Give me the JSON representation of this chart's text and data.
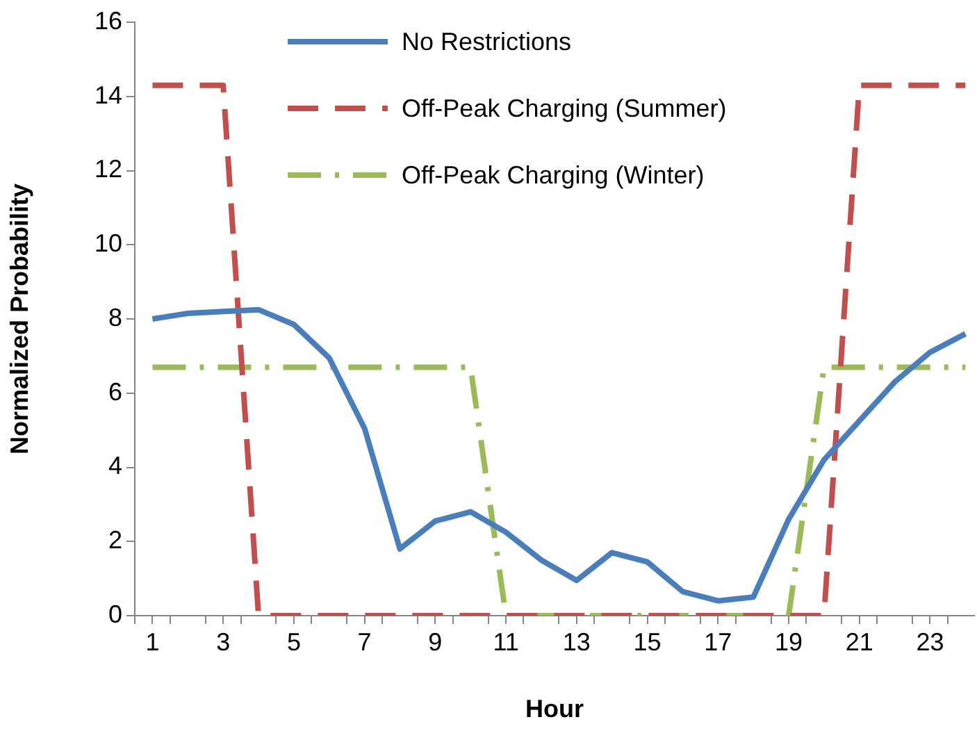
{
  "chart_data": {
    "type": "line",
    "xlabel": "Hour",
    "ylabel": "Normalized Probability",
    "x": [
      1,
      2,
      3,
      4,
      5,
      6,
      7,
      8,
      9,
      10,
      11,
      12,
      13,
      14,
      15,
      16,
      17,
      18,
      19,
      20,
      21,
      22,
      23,
      24
    ],
    "xlim": [
      0.5,
      24.25
    ],
    "xticks": [
      {
        "value": 0.5,
        "label": null
      },
      1,
      {
        "value": 1.5,
        "label": null
      },
      {
        "value": 2.5,
        "label": null
      },
      3,
      {
        "value": 3.5,
        "label": null
      },
      {
        "value": 4.5,
        "label": null
      },
      5,
      {
        "value": 5.5,
        "label": null
      },
      {
        "value": 6.5,
        "label": null
      },
      7,
      {
        "value": 7.5,
        "label": null
      },
      {
        "value": 8.5,
        "label": null
      },
      9,
      {
        "value": 9.5,
        "label": null
      },
      {
        "value": 10.5,
        "label": null
      },
      11,
      {
        "value": 11.5,
        "label": null
      },
      {
        "value": 12.5,
        "label": null
      },
      13,
      {
        "value": 13.5,
        "label": null
      },
      {
        "value": 14.5,
        "label": null
      },
      15,
      {
        "value": 15.5,
        "label": null
      },
      {
        "value": 16.5,
        "label": null
      },
      17,
      {
        "value": 17.5,
        "label": null
      },
      {
        "value": 18.5,
        "label": null
      },
      19,
      {
        "value": 19.5,
        "label": null
      },
      {
        "value": 20.5,
        "label": null
      },
      21,
      {
        "value": 21.5,
        "label": null
      },
      {
        "value": 22.5,
        "label": null
      },
      23,
      {
        "value": 23.5,
        "label": null
      }
    ],
    "ylim": [
      0,
      16
    ],
    "yticks": [
      0,
      2,
      4,
      6,
      8,
      10,
      12,
      14,
      16
    ],
    "grid": false,
    "legend": "top",
    "marker": "none",
    "series": [
      {
        "name": "No Restrictions",
        "color": "#4a7ebb",
        "line_style": "solid",
        "values": [
          8.0,
          8.15,
          8.2,
          8.25,
          7.85,
          6.95,
          5.05,
          1.8,
          2.55,
          2.8,
          2.25,
          1.5,
          0.95,
          1.7,
          1.45,
          0.65,
          0.4,
          0.5,
          2.6,
          4.2,
          5.25,
          6.3,
          7.1,
          7.6
        ]
      },
      {
        "name": "Off-Peak Charging (Summer)",
        "color": "#c0504d",
        "line_style": "dashed",
        "values": [
          14.3,
          14.3,
          14.3,
          0,
          0,
          0,
          0,
          0,
          0,
          0,
          0,
          0,
          0,
          0,
          0,
          0,
          0,
          0,
          0,
          0,
          14.3,
          14.3,
          14.3,
          14.3
        ]
      },
      {
        "name": "Off-Peak Charging (Winter)",
        "color": "#9bbb59",
        "line_style": "dashdot",
        "values": [
          6.7,
          6.7,
          6.7,
          6.7,
          6.7,
          6.7,
          6.7,
          6.7,
          6.7,
          6.7,
          0,
          0,
          0,
          0,
          0,
          0,
          0,
          0,
          0,
          6.7,
          6.7,
          6.7,
          6.7,
          6.7
        ]
      }
    ]
  }
}
